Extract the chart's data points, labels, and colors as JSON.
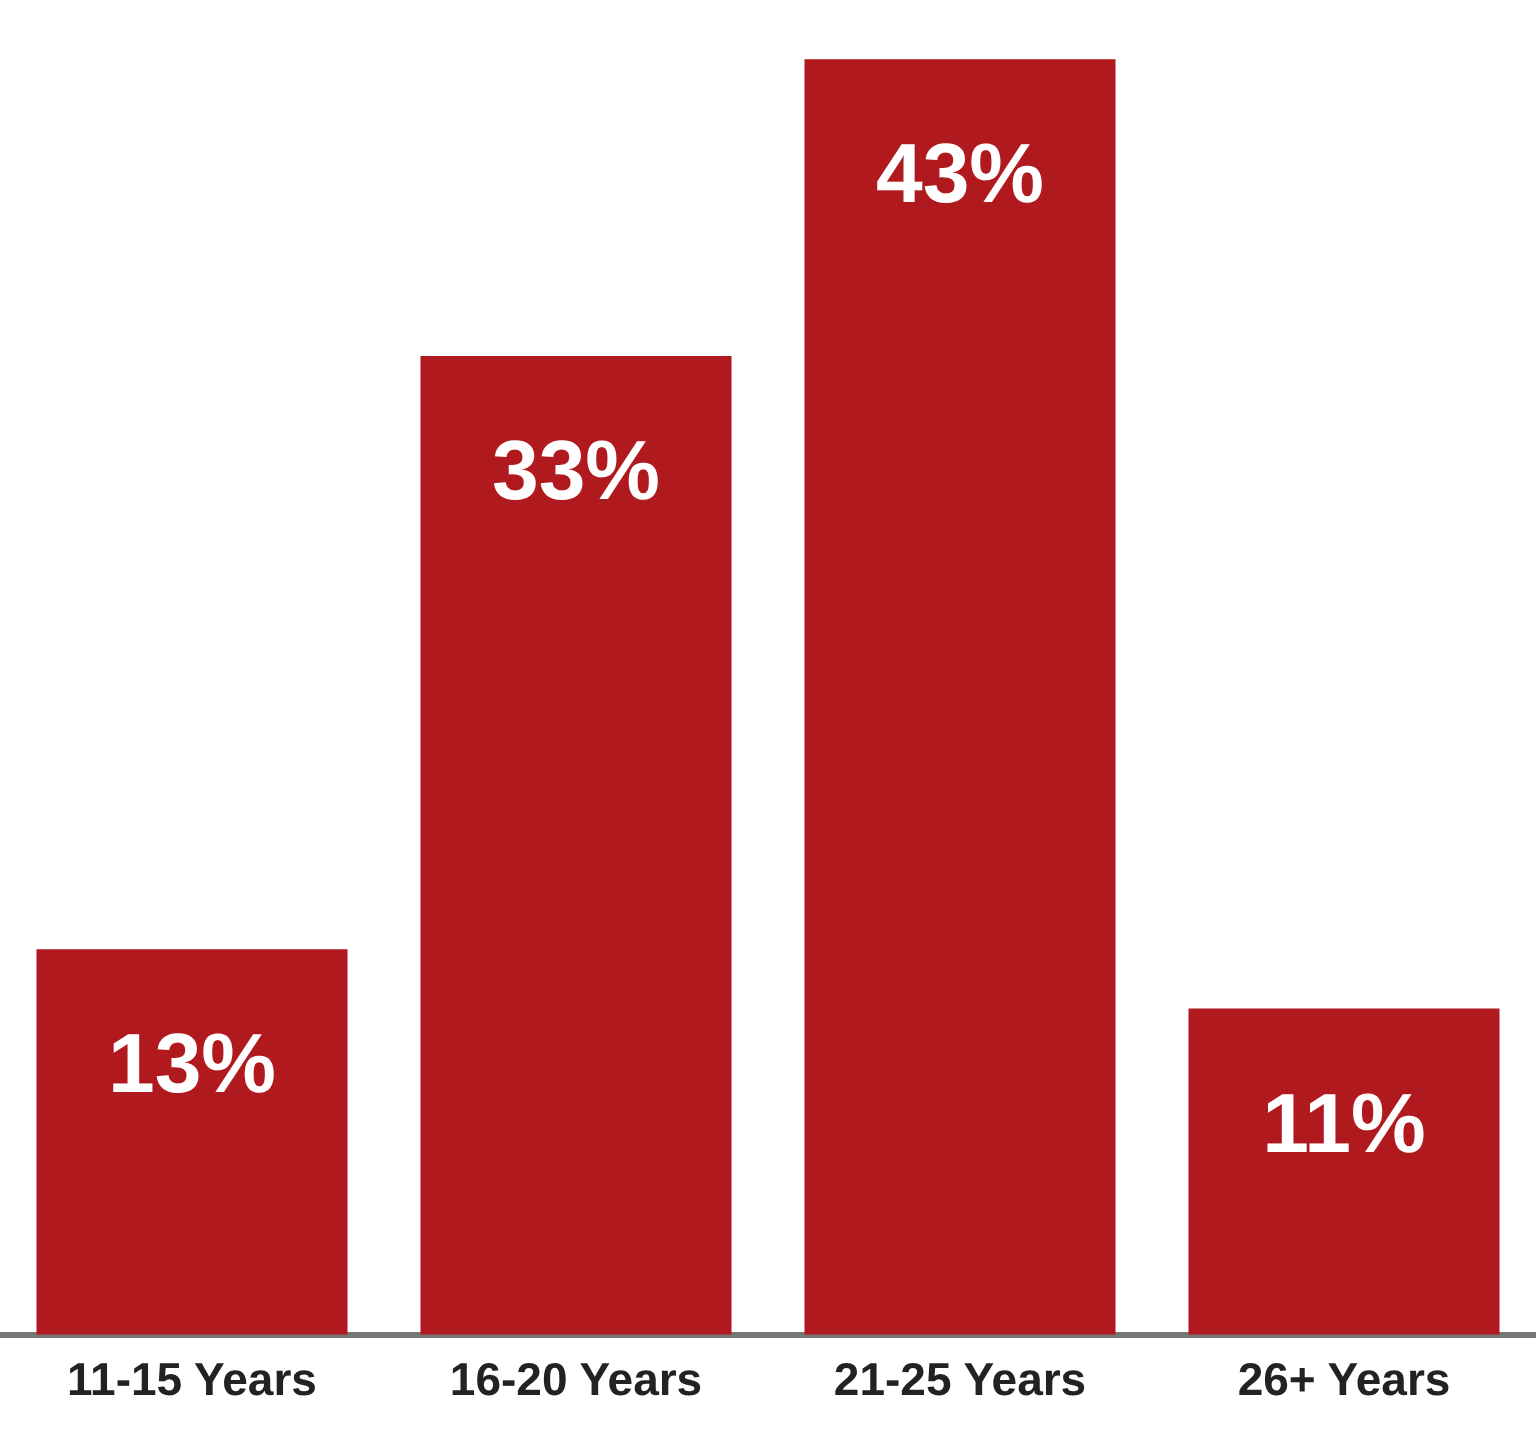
{
  "chart_data": {
    "type": "bar",
    "categories": [
      "11-15 Years",
      "16-20 Years",
      "21-25 Years",
      "26+ Years"
    ],
    "values": [
      13,
      33,
      43,
      11
    ],
    "color": "#b0191e",
    "value_labels": [
      "13%",
      "33%",
      "43%",
      "11%"
    ],
    "grid": false,
    "legend": false
  }
}
